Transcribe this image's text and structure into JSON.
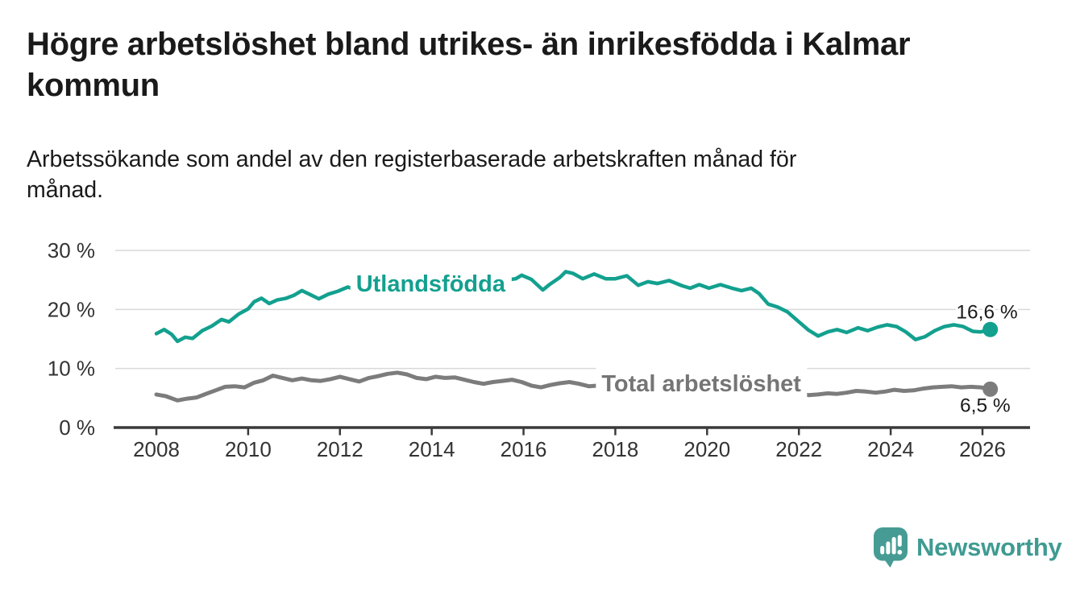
{
  "header": {
    "title": "Högre arbetslöshet bland utrikes- än inrikesfödda i Kalmar\nkommun",
    "subtitle": "Arbetssökande som andel av den registerbaserade arbetskraften månad för\nmånad."
  },
  "chart_data": {
    "type": "line",
    "unit": "%",
    "grid": true,
    "x_axis": {
      "ticks": [
        2008,
        2010,
        2012,
        2014,
        2016,
        2018,
        2020,
        2022,
        2024,
        2026
      ],
      "range": [
        2007.1,
        2027.0
      ]
    },
    "y_axis": {
      "ticks": [
        0,
        10,
        20,
        30
      ],
      "tick_suffix": " %",
      "range": [
        0,
        32
      ]
    },
    "colors": {
      "grid": "#d9d9d9",
      "axis": "#3a3a3a",
      "tick_label": "#333333",
      "value_label": "#1a1a1a",
      "background": "#ffffff"
    },
    "series": [
      {
        "name": "Utlandsfödda",
        "color": "#13a08f",
        "label_color": "#13a08f",
        "end_value": 16.6,
        "end_label": "16,6 %",
        "label_anchor": {
          "x": 2012.35,
          "y": 23.05
        },
        "points": [
          [
            2008.0,
            15.9
          ],
          [
            2008.17,
            16.6
          ],
          [
            2008.33,
            15.8
          ],
          [
            2008.46,
            14.6
          ],
          [
            2008.63,
            15.3
          ],
          [
            2008.79,
            15.1
          ],
          [
            2009.0,
            16.4
          ],
          [
            2009.21,
            17.2
          ],
          [
            2009.42,
            18.3
          ],
          [
            2009.58,
            17.9
          ],
          [
            2009.79,
            19.2
          ],
          [
            2010.0,
            20.1
          ],
          [
            2010.13,
            21.3
          ],
          [
            2010.29,
            21.9
          ],
          [
            2010.46,
            21.0
          ],
          [
            2010.63,
            21.6
          ],
          [
            2010.83,
            21.9
          ],
          [
            2011.0,
            22.4
          ],
          [
            2011.17,
            23.2
          ],
          [
            2011.38,
            22.4
          ],
          [
            2011.54,
            21.8
          ],
          [
            2011.75,
            22.6
          ],
          [
            2011.96,
            23.1
          ],
          [
            2012.17,
            23.8
          ],
          [
            2012.33,
            23.4
          ],
          [
            2012.54,
            23.9
          ],
          [
            2012.75,
            23.6
          ],
          [
            2012.96,
            24.2
          ],
          [
            2013.17,
            24.5
          ],
          [
            2013.38,
            23.9
          ],
          [
            2013.58,
            24.3
          ],
          [
            2013.79,
            24.6
          ],
          [
            2014.0,
            24.4
          ],
          [
            2014.21,
            25.0
          ],
          [
            2014.42,
            24.6
          ],
          [
            2014.63,
            24.8
          ],
          [
            2014.83,
            24.3
          ],
          [
            2015.0,
            25.1
          ],
          [
            2015.21,
            25.6
          ],
          [
            2015.42,
            25.2
          ],
          [
            2015.63,
            25.0
          ],
          [
            2015.83,
            25.2
          ],
          [
            2015.96,
            25.8
          ],
          [
            2016.17,
            25.1
          ],
          [
            2016.42,
            23.3
          ],
          [
            2016.58,
            24.3
          ],
          [
            2016.79,
            25.4
          ],
          [
            2016.92,
            26.4
          ],
          [
            2017.08,
            26.1
          ],
          [
            2017.29,
            25.2
          ],
          [
            2017.54,
            26.0
          ],
          [
            2017.79,
            25.2
          ],
          [
            2018.0,
            25.2
          ],
          [
            2018.25,
            25.7
          ],
          [
            2018.5,
            24.1
          ],
          [
            2018.71,
            24.7
          ],
          [
            2018.92,
            24.4
          ],
          [
            2019.17,
            24.9
          ],
          [
            2019.46,
            24.0
          ],
          [
            2019.63,
            23.6
          ],
          [
            2019.83,
            24.2
          ],
          [
            2020.04,
            23.6
          ],
          [
            2020.29,
            24.2
          ],
          [
            2020.54,
            23.6
          ],
          [
            2020.75,
            23.2
          ],
          [
            2020.96,
            23.6
          ],
          [
            2021.13,
            22.7
          ],
          [
            2021.33,
            20.9
          ],
          [
            2021.54,
            20.4
          ],
          [
            2021.75,
            19.6
          ],
          [
            2022.0,
            17.9
          ],
          [
            2022.21,
            16.5
          ],
          [
            2022.42,
            15.5
          ],
          [
            2022.63,
            16.2
          ],
          [
            2022.83,
            16.6
          ],
          [
            2023.04,
            16.1
          ],
          [
            2023.29,
            16.9
          ],
          [
            2023.5,
            16.4
          ],
          [
            2023.71,
            17.0
          ],
          [
            2023.92,
            17.4
          ],
          [
            2024.13,
            17.1
          ],
          [
            2024.33,
            16.2
          ],
          [
            2024.54,
            14.9
          ],
          [
            2024.75,
            15.4
          ],
          [
            2024.96,
            16.4
          ],
          [
            2025.17,
            17.1
          ],
          [
            2025.38,
            17.4
          ],
          [
            2025.58,
            17.1
          ],
          [
            2025.79,
            16.3
          ],
          [
            2025.96,
            16.2
          ],
          [
            2026.17,
            16.6
          ]
        ]
      },
      {
        "name": "Total arbetslöshet",
        "color": "#7c7c7c",
        "label_color": "#757575",
        "end_value": 6.5,
        "end_label": "6,5 %",
        "label_anchor": {
          "x": 2017.7,
          "y": 6.15
        },
        "points": [
          [
            2008.0,
            5.6
          ],
          [
            2008.21,
            5.3
          ],
          [
            2008.46,
            4.6
          ],
          [
            2008.67,
            4.9
          ],
          [
            2008.88,
            5.1
          ],
          [
            2009.08,
            5.7
          ],
          [
            2009.29,
            6.3
          ],
          [
            2009.5,
            6.9
          ],
          [
            2009.71,
            7.0
          ],
          [
            2009.92,
            6.8
          ],
          [
            2010.13,
            7.6
          ],
          [
            2010.33,
            8.0
          ],
          [
            2010.54,
            8.8
          ],
          [
            2010.75,
            8.4
          ],
          [
            2010.96,
            8.0
          ],
          [
            2011.17,
            8.3
          ],
          [
            2011.38,
            8.0
          ],
          [
            2011.58,
            7.9
          ],
          [
            2011.79,
            8.2
          ],
          [
            2012.0,
            8.6
          ],
          [
            2012.21,
            8.2
          ],
          [
            2012.42,
            7.8
          ],
          [
            2012.63,
            8.4
          ],
          [
            2012.83,
            8.7
          ],
          [
            2013.04,
            9.1
          ],
          [
            2013.25,
            9.3
          ],
          [
            2013.46,
            9.0
          ],
          [
            2013.67,
            8.4
          ],
          [
            2013.88,
            8.2
          ],
          [
            2014.08,
            8.6
          ],
          [
            2014.29,
            8.4
          ],
          [
            2014.5,
            8.5
          ],
          [
            2014.71,
            8.1
          ],
          [
            2014.92,
            7.7
          ],
          [
            2015.13,
            7.4
          ],
          [
            2015.33,
            7.7
          ],
          [
            2015.54,
            7.9
          ],
          [
            2015.75,
            8.1
          ],
          [
            2015.96,
            7.7
          ],
          [
            2016.17,
            7.1
          ],
          [
            2016.38,
            6.8
          ],
          [
            2016.58,
            7.2
          ],
          [
            2016.79,
            7.5
          ],
          [
            2017.0,
            7.7
          ],
          [
            2017.21,
            7.4
          ],
          [
            2017.42,
            7.0
          ],
          [
            2017.63,
            7.1
          ],
          [
            2017.83,
            7.2
          ],
          [
            2018.04,
            7.0
          ],
          [
            2018.25,
            6.8
          ],
          [
            2018.5,
            7.0
          ],
          [
            2018.75,
            6.9
          ],
          [
            2019.0,
            6.7
          ],
          [
            2019.25,
            6.8
          ],
          [
            2019.5,
            6.6
          ],
          [
            2019.75,
            6.8
          ],
          [
            2020.0,
            7.0
          ],
          [
            2020.25,
            7.5
          ],
          [
            2020.5,
            7.3
          ],
          [
            2020.75,
            7.0
          ],
          [
            2021.0,
            6.7
          ],
          [
            2021.25,
            6.4
          ],
          [
            2021.5,
            6.1
          ],
          [
            2021.75,
            5.9
          ],
          [
            2022.0,
            5.7
          ],
          [
            2022.21,
            5.5
          ],
          [
            2022.42,
            5.6
          ],
          [
            2022.63,
            5.8
          ],
          [
            2022.83,
            5.7
          ],
          [
            2023.04,
            5.9
          ],
          [
            2023.25,
            6.2
          ],
          [
            2023.46,
            6.1
          ],
          [
            2023.67,
            5.9
          ],
          [
            2023.88,
            6.1
          ],
          [
            2024.08,
            6.4
          ],
          [
            2024.29,
            6.2
          ],
          [
            2024.5,
            6.3
          ],
          [
            2024.71,
            6.6
          ],
          [
            2024.92,
            6.8
          ],
          [
            2025.13,
            6.9
          ],
          [
            2025.33,
            7.0
          ],
          [
            2025.54,
            6.8
          ],
          [
            2025.75,
            6.9
          ],
          [
            2025.96,
            6.8
          ],
          [
            2026.17,
            6.5
          ]
        ]
      }
    ]
  },
  "footer": {
    "brand": "Newsworthy",
    "logo_icon": "newsworthy-bar-chart-speech-bubble-icon",
    "brand_color": "#3f9b92",
    "icon_color": "#469c94"
  }
}
